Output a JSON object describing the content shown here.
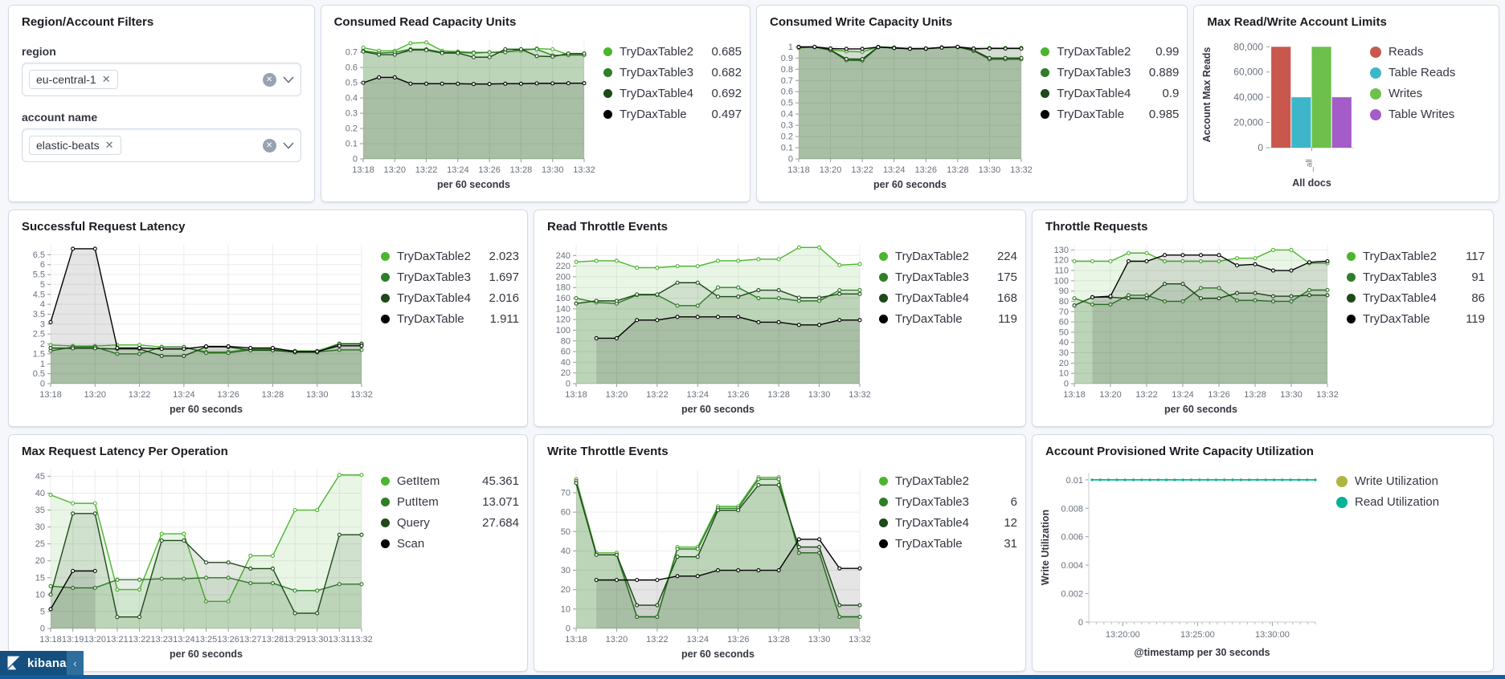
{
  "app": {
    "brand": "kibana",
    "collapse_glyph": "‹"
  },
  "filters": {
    "title": "Region/Account Filters",
    "fields": [
      {
        "label": "region",
        "value": "eu-central-1",
        "remove_glyph": "✕"
      },
      {
        "label": "account name",
        "value": "elastic-beats",
        "remove_glyph": "✕"
      }
    ]
  },
  "colors": {
    "green_bright": "#4cb52f",
    "green_mid": "#2f7e28",
    "green_dark": "#1d4a18",
    "black": "#000000",
    "bar_red": "#c8584e",
    "bar_teal": "#3eb6c9",
    "bar_green": "#6ec04c",
    "bar_purple": "#a45cc8",
    "util_write": "#b0b53f",
    "util_read": "#00b298"
  },
  "chart_data": [
    {
      "type": "line",
      "title": "Consumed Read Capacity Units",
      "xlabel": "per 60 seconds",
      "x_labels": [
        "13:18",
        "13:20",
        "13:22",
        "13:24",
        "13:26",
        "13:28",
        "13:30",
        "13:32"
      ],
      "x_every": 2,
      "y_ticks": [
        0,
        0.1,
        0.2,
        0.3,
        0.4,
        0.5,
        0.6,
        0.7
      ],
      "ylim": [
        0,
        0.78
      ],
      "series": [
        {
          "name": "TryDaxTable2",
          "legend_value": "0.685",
          "color": "#4cb52f",
          "values": [
            0.73,
            0.71,
            0.71,
            0.76,
            0.765,
            0.71,
            0.705,
            0.7,
            0.7,
            0.705,
            0.71,
            0.725,
            0.72,
            0.685,
            0.685
          ]
        },
        {
          "name": "TryDaxTable3",
          "legend_value": "0.682",
          "color": "#2f7e28",
          "values": [
            0.71,
            0.695,
            0.7,
            0.72,
            0.72,
            0.7,
            0.7,
            0.695,
            0.7,
            0.7,
            0.72,
            0.72,
            0.68,
            0.682,
            0.682
          ]
        },
        {
          "name": "TryDaxTable4",
          "legend_value": "0.692",
          "color": "#1d4a18",
          "values": [
            0.705,
            0.685,
            0.685,
            0.715,
            0.715,
            0.695,
            0.695,
            0.668,
            0.668,
            0.72,
            0.72,
            0.675,
            0.672,
            0.692,
            0.692
          ]
        },
        {
          "name": "TryDaxTable",
          "legend_value": "0.497",
          "color": "#000000",
          "values": [
            0.5,
            0.535,
            0.535,
            0.494,
            0.494,
            0.494,
            0.494,
            0.492,
            0.492,
            0.494,
            0.494,
            0.496,
            0.496,
            0.497,
            0.497
          ]
        }
      ]
    },
    {
      "type": "line",
      "title": "Consumed Write Capacity Units",
      "xlabel": "per 60 seconds",
      "x_labels": [
        "13:18",
        "13:20",
        "13:22",
        "13:24",
        "13:26",
        "13:28",
        "13:30",
        "13:32"
      ],
      "x_every": 2,
      "y_ticks": [
        0,
        0.1,
        0.2,
        0.3,
        0.4,
        0.5,
        0.6,
        0.7,
        0.8,
        0.9,
        1
      ],
      "ylim": [
        0,
        1.06
      ],
      "series": [
        {
          "name": "TryDaxTable2",
          "legend_value": "0.99",
          "color": "#4cb52f",
          "values": [
            0.99,
            1,
            0.975,
            0.96,
            0.955,
            1,
            0.995,
            0.985,
            0.985,
            0.995,
            1,
            0.975,
            0.99,
            0.99,
            0.99
          ]
        },
        {
          "name": "TryDaxTable3",
          "legend_value": "0.889",
          "color": "#2f7e28",
          "values": [
            1,
            1,
            0.97,
            0.88,
            0.878,
            0.998,
            0.99,
            0.982,
            0.982,
            0.993,
            1,
            0.965,
            0.889,
            0.889,
            0.889
          ]
        },
        {
          "name": "TryDaxTable4",
          "legend_value": "0.9",
          "color": "#1d4a18",
          "values": [
            1,
            0.998,
            0.972,
            0.892,
            0.89,
            1,
            0.992,
            0.984,
            0.984,
            0.995,
            0.998,
            0.97,
            0.9,
            0.9,
            0.9
          ]
        },
        {
          "name": "TryDaxTable",
          "legend_value": "0.985",
          "color": "#000000",
          "values": [
            0.998,
            1,
            0.985,
            0.982,
            0.982,
            0.998,
            0.99,
            0.983,
            0.985,
            0.993,
            1,
            0.985,
            0.985,
            0.985,
            0.985
          ]
        }
      ]
    },
    {
      "type": "bar",
      "title": "Max Read/Write Account Limits",
      "xlabel": "All docs",
      "ylabel": "Account Max Reads",
      "x_tick_label": "_all",
      "y_ticks": [
        {
          "v": 0,
          "t": "0"
        },
        {
          "v": 20000,
          "t": "20,000"
        },
        {
          "v": 40000,
          "t": "40,000"
        },
        {
          "v": 60000,
          "t": "60,000"
        },
        {
          "v": 80000,
          "t": "80,000"
        }
      ],
      "ylim": [
        0,
        84000
      ],
      "series": [
        {
          "name": "Reads",
          "color": "#c8584e",
          "value": 80000
        },
        {
          "name": "Table Reads",
          "color": "#3eb6c9",
          "value": 40000
        },
        {
          "name": "Writes",
          "color": "#6ec04c",
          "value": 80000
        },
        {
          "name": "Table Writes",
          "color": "#a45cc8",
          "value": 40000
        }
      ]
    },
    {
      "type": "line",
      "title": "Successful Request Latency",
      "xlabel": "per 60 seconds",
      "x_labels": [
        "13:18",
        "13:20",
        "13:22",
        "13:24",
        "13:26",
        "13:28",
        "13:30",
        "13:32"
      ],
      "x_every": 2,
      "y_ticks": [
        0,
        0.5,
        1,
        1.5,
        2,
        2.5,
        3,
        3.5,
        4,
        4.5,
        5,
        5.5,
        6,
        6.5
      ],
      "ylim": [
        0,
        7
      ],
      "series": [
        {
          "name": "TryDaxTable2",
          "legend_value": "2.023",
          "color": "#4cb52f",
          "values": [
            1.95,
            1.9,
            1.9,
            1.95,
            1.95,
            1.85,
            1.85,
            1.6,
            1.6,
            1.75,
            1.75,
            1.65,
            1.65,
            2.02,
            2.02
          ]
        },
        {
          "name": "TryDaxTable3",
          "legend_value": "1.697",
          "color": "#2f7e28",
          "values": [
            1.65,
            1.85,
            1.85,
            1.5,
            1.5,
            1.85,
            1.85,
            1.55,
            1.55,
            1.7,
            1.7,
            1.6,
            1.6,
            1.7,
            1.7
          ]
        },
        {
          "name": "TryDaxTable4",
          "legend_value": "2.016",
          "color": "#1d4a18",
          "values": [
            1.8,
            1.78,
            1.78,
            1.75,
            1.75,
            1.4,
            1.4,
            1.85,
            1.85,
            1.68,
            1.68,
            1.58,
            1.58,
            2,
            2
          ]
        },
        {
          "name": "TryDaxTable",
          "legend_value": "1.911",
          "color": "#000000",
          "values": [
            3.1,
            6.8,
            6.8,
            1.8,
            1.8,
            1.75,
            1.75,
            1.88,
            1.88,
            1.8,
            1.8,
            1.62,
            1.62,
            1.91,
            1.91
          ]
        }
      ]
    },
    {
      "type": "line",
      "title": "Read Throttle Events",
      "xlabel": "per 60 seconds",
      "x_labels": [
        "13:18",
        "13:20",
        "13:22",
        "13:24",
        "13:26",
        "13:28",
        "13:30",
        "13:32"
      ],
      "x_every": 2,
      "y_ticks": [
        0,
        20,
        40,
        60,
        80,
        100,
        120,
        140,
        160,
        180,
        200,
        220,
        240
      ],
      "ylim": [
        0,
        260
      ],
      "series": [
        {
          "name": "TryDaxTable2",
          "legend_value": "224",
          "color": "#4cb52f",
          "values": [
            228,
            230,
            230,
            217,
            217,
            220,
            220,
            230,
            230,
            233,
            233,
            255,
            255,
            222,
            224
          ]
        },
        {
          "name": "TryDaxTable3",
          "legend_value": "175",
          "color": "#2f7e28",
          "values": [
            160,
            152,
            150,
            166,
            166,
            146,
            146,
            180,
            180,
            160,
            160,
            155,
            155,
            175,
            175
          ]
        },
        {
          "name": "TryDaxTable4",
          "legend_value": "168",
          "color": "#1d4a18",
          "values": [
            150,
            155,
            155,
            167,
            167,
            189,
            189,
            163,
            163,
            175,
            175,
            161,
            161,
            168,
            168
          ]
        },
        {
          "name": "TryDaxTable",
          "legend_value": "119",
          "color": "#000000",
          "values": [
            null,
            85,
            85,
            119,
            119,
            125,
            125,
            125,
            125,
            115,
            115,
            110,
            110,
            119,
            119
          ]
        }
      ]
    },
    {
      "type": "line",
      "title": "Throttle Requests",
      "xlabel": "per 60 seconds",
      "x_labels": [
        "13:18",
        "13:20",
        "13:22",
        "13:24",
        "13:26",
        "13:28",
        "13:30",
        "13:32"
      ],
      "x_every": 2,
      "y_ticks": [
        0,
        10,
        20,
        30,
        40,
        50,
        60,
        70,
        80,
        90,
        100,
        110,
        120,
        130
      ],
      "ylim": [
        0,
        135
      ],
      "series": [
        {
          "name": "TryDaxTable2",
          "legend_value": "117",
          "color": "#4cb52f",
          "values": [
            119,
            119,
            119,
            127,
            127,
            119,
            119,
            119,
            119,
            122,
            122,
            130,
            130,
            117,
            117
          ]
        },
        {
          "name": "TryDaxTable3",
          "legend_value": "91",
          "color": "#2f7e28",
          "values": [
            83,
            77,
            77,
            86,
            86,
            80,
            80,
            93,
            93,
            81,
            81,
            80,
            80,
            91,
            91
          ]
        },
        {
          "name": "TryDaxTable4",
          "legend_value": "86",
          "color": "#1d4a18",
          "values": [
            76,
            84,
            84,
            83,
            83,
            97,
            97,
            83,
            83,
            88,
            88,
            85,
            85,
            86,
            86
          ]
        },
        {
          "name": "TryDaxTable",
          "legend_value": "119",
          "color": "#000000",
          "values": [
            null,
            84,
            85,
            119,
            119,
            125,
            125,
            125,
            125,
            115,
            116,
            110,
            110,
            118,
            119
          ]
        }
      ]
    },
    {
      "type": "line",
      "title": "Max Request Latency Per Operation",
      "xlabel": "per 60 seconds",
      "x_labels": [
        "13:18",
        "13:19",
        "13:20",
        "13:21",
        "13:22",
        "13:23",
        "13:24",
        "13:25",
        "13:26",
        "13:27",
        "13:28",
        "13:29",
        "13:30",
        "13:31",
        "13:32"
      ],
      "x_every": 1,
      "y_ticks": [
        0,
        5,
        10,
        15,
        20,
        25,
        30,
        35,
        40,
        45
      ],
      "ylim": [
        0,
        47
      ],
      "series": [
        {
          "name": "GetItem",
          "legend_value": "45.361",
          "color": "#4cb52f",
          "values": [
            39.5,
            37,
            37,
            11.5,
            11.5,
            28,
            28,
            8,
            8,
            21.5,
            21.5,
            35,
            35,
            45.4,
            45.4
          ]
        },
        {
          "name": "PutItem",
          "legend_value": "13.071",
          "color": "#2f7e28",
          "values": [
            12.5,
            12,
            12,
            14.4,
            14.4,
            14.7,
            14.7,
            15,
            15,
            13.4,
            13.4,
            11.2,
            11.2,
            13.1,
            13.1
          ]
        },
        {
          "name": "Query",
          "legend_value": "27.684",
          "color": "#1d4a18",
          "values": [
            10,
            34,
            34,
            3.4,
            3.4,
            26,
            26,
            19.5,
            19.5,
            17.7,
            17.7,
            4.5,
            4.5,
            27.7,
            27.7
          ]
        },
        {
          "name": "Scan",
          "legend_value": "",
          "color": "#000000",
          "values": [
            5.7,
            17,
            17,
            null,
            null,
            null,
            null,
            null,
            null,
            null,
            null,
            null,
            null,
            null,
            null
          ]
        }
      ]
    },
    {
      "type": "line",
      "title": "Write Throttle Events",
      "xlabel": "per 60 seconds",
      "x_labels": [
        "13:18",
        "13:20",
        "13:22",
        "13:24",
        "13:26",
        "13:28",
        "13:30",
        "13:32"
      ],
      "x_every": 2,
      "y_ticks": [
        0,
        10,
        20,
        30,
        40,
        50,
        60,
        70
      ],
      "ylim": [
        0,
        82
      ],
      "series": [
        {
          "name": "TryDaxTable2",
          "legend_value": "",
          "color": "#4cb52f",
          "values": [
            77,
            39,
            39,
            6,
            6,
            42,
            42,
            63,
            63,
            78,
            78,
            39,
            39,
            6,
            6
          ]
        },
        {
          "name": "TryDaxTable3",
          "legend_value": "6",
          "color": "#2f7e28",
          "values": [
            76,
            38,
            38,
            6,
            6,
            41,
            41,
            62,
            62,
            77,
            77,
            39,
            39,
            6,
            6
          ]
        },
        {
          "name": "TryDaxTable4",
          "legend_value": "12",
          "color": "#1d4a18",
          "values": [
            75,
            38,
            38,
            12,
            12,
            37,
            37,
            61,
            61,
            74,
            74,
            42,
            42,
            12,
            12
          ]
        },
        {
          "name": "TryDaxTable",
          "legend_value": "31",
          "color": "#000000",
          "values": [
            null,
            25,
            25,
            25,
            25,
            27,
            27,
            30,
            30,
            30,
            30,
            46,
            46,
            31,
            31
          ]
        }
      ]
    },
    {
      "type": "utilization",
      "title": "Account Provisioned Write Capacity Utilization",
      "xlabel": "@timestamp per 30 seconds",
      "ylabel": "Write Utilization",
      "x_ticks": [
        {
          "f": 0.15,
          "t": "13:20:00"
        },
        {
          "f": 0.48,
          "t": "13:25:00"
        },
        {
          "f": 0.81,
          "t": "13:30:00"
        }
      ],
      "y_ticks": [
        0,
        0.002,
        0.004,
        0.006,
        0.008,
        0.01
      ],
      "ylim": [
        0,
        0.0105
      ],
      "flat_value": 0.01,
      "n_points": 28,
      "series": [
        {
          "name": "Write Utilization",
          "color": "#b0b53f"
        },
        {
          "name": "Read Utilization",
          "color": "#00b298"
        }
      ]
    }
  ]
}
